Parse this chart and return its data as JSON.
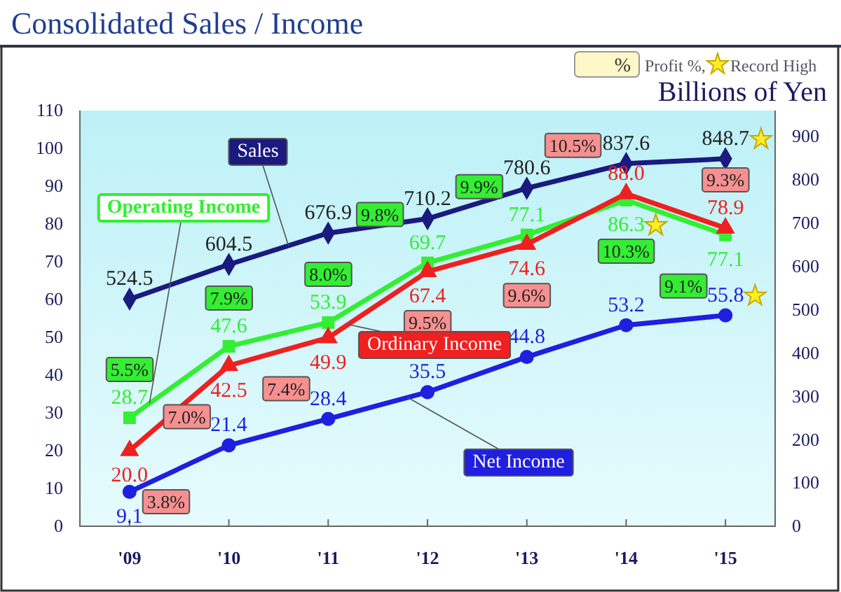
{
  "chart_data": {
    "type": "line",
    "title": "Consolidated Sales / Income",
    "y2label": "Billions of Yen",
    "categories": [
      "'09",
      "'10",
      "'11",
      "'12",
      "'13",
      "'14",
      "'15"
    ],
    "series": [
      {
        "name": "Sales",
        "color": "#1a1a80",
        "axis": "y2",
        "marker": "diamond",
        "values": [
          524.5,
          604.5,
          676.9,
          710.2,
          780.6,
          837.6,
          848.7
        ],
        "value_labels": [
          "524.5",
          "604.5",
          "676.9",
          "710.2",
          "780.6",
          "837.6",
          "848.7"
        ]
      },
      {
        "name": "Operating Income",
        "color": "#33ee33",
        "marker": "square",
        "values": [
          28.7,
          47.6,
          53.9,
          69.7,
          77.1,
          86.3,
          77.1
        ],
        "value_labels": [
          "28.7",
          "47.6",
          "53.9",
          "69.7",
          "77.1",
          "86.3",
          "77.1"
        ]
      },
      {
        "name": "Ordinary Income",
        "color": "#ee2020",
        "marker": "triangle",
        "values": [
          20.0,
          42.5,
          49.9,
          67.4,
          74.6,
          88.0,
          78.9
        ],
        "value_labels": [
          "20.0",
          "42.5",
          "49.9",
          "67.4",
          "74.6",
          "88.0",
          "78.9"
        ]
      },
      {
        "name": "Net Income",
        "color": "#1f1fe0",
        "marker": "circle",
        "values": [
          9.1,
          21.4,
          28.4,
          35.5,
          44.8,
          53.2,
          55.8
        ],
        "value_labels": [
          "9.1",
          "21.4",
          "28.4",
          "35.5",
          "44.8",
          "53.2",
          "55.8"
        ]
      }
    ],
    "ylim": [
      0,
      110
    ],
    "yticks": [
      0,
      10,
      20,
      30,
      40,
      50,
      60,
      70,
      80,
      90,
      100,
      110
    ],
    "y2lim": [
      0,
      960
    ],
    "y2ticks": [
      0,
      100,
      200,
      300,
      400,
      500,
      600,
      700,
      800,
      900
    ],
    "annotations": [
      "%",
      "Profit %,",
      "Record  High",
      {
        "text": "5.5%",
        "x": "'09",
        "y": 28.7
      },
      {
        "text": "7.9%",
        "x": "'10",
        "y": 47.6
      },
      {
        "text": "8.0%",
        "x": "'11",
        "y": 53.9
      },
      {
        "text": "9.8%",
        "x": "'12",
        "y": 69.7
      },
      {
        "text": "9.9%",
        "x": "'13",
        "y": 77.1
      },
      {
        "text": "10.3%",
        "x": "'14",
        "y": 86.3
      },
      {
        "text": "9.1%",
        "x": "'15",
        "y": 77.1
      },
      {
        "text": "3.8%",
        "x": "'09",
        "y": 20.0
      },
      {
        "text": "7.0%",
        "x": "'10",
        "y": 42.5
      },
      {
        "text": "7.4%",
        "x": "'11",
        "y": 49.9
      },
      {
        "text": "9.5%",
        "x": "'12",
        "y": 67.4
      },
      {
        "text": "9.6%",
        "x": "'13",
        "y": 74.6
      },
      {
        "text": "10.5%",
        "x": "'14",
        "y": 88.0
      },
      {
        "text": "9.3%",
        "x": "'15",
        "y": 78.9
      }
    ]
  }
}
